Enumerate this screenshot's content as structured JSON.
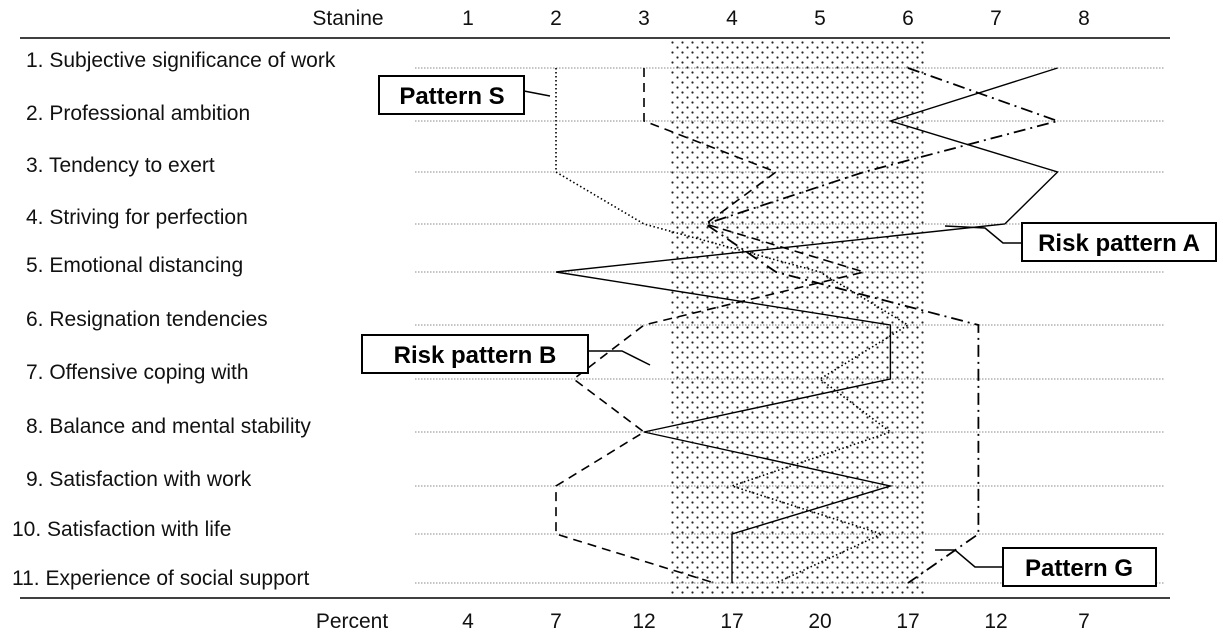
{
  "chart_data": {
    "type": "line",
    "top_axis_title": "Stanine",
    "top_ticks": [
      "1",
      "2",
      "3",
      "4",
      "5",
      "6",
      "7",
      "8"
    ],
    "bottom_axis_title": "Percent",
    "bottom_ticks": [
      "4",
      "7",
      "12",
      "17",
      "20",
      "17",
      "12",
      "7"
    ],
    "categories": [
      "1. Subjective significance of work",
      "2. Professional ambition",
      "3. Tendency to exert",
      "4. Striving for perfection",
      "5. Emotional distancing",
      "6. Resignation tendencies",
      "7. Offensive coping with",
      "8. Balance and mental stability",
      "9. Satisfaction with work",
      "10. Satisfaction with life",
      "11. Experience of social support"
    ],
    "normal_range": [
      3.3,
      6.2
    ],
    "series": [
      {
        "name": "Pattern S",
        "style": "dotted",
        "values": [
          2.0,
          2.0,
          2.0,
          3.0,
          5.0,
          6.0,
          5.0,
          5.8,
          4.0,
          5.7,
          4.5
        ]
      },
      {
        "name": "Risk pattern A",
        "style": "solid",
        "values": [
          7.7,
          5.8,
          7.7,
          7.1,
          2.0,
          5.8,
          5.8,
          3.0,
          5.8,
          4.0,
          4.0
        ]
      },
      {
        "name": "Risk pattern B",
        "style": "dashed",
        "values": [
          3.0,
          3.0,
          4.5,
          3.7,
          5.5,
          3.0,
          2.2,
          3.0,
          2.0,
          2.0,
          3.8
        ]
      },
      {
        "name": "Pattern G",
        "style": "dashdot",
        "values": [
          6.0,
          7.7,
          5.5,
          3.7,
          4.5,
          6.8,
          6.8,
          6.8,
          6.8,
          6.8,
          6.0
        ]
      }
    ],
    "annotations": [
      "Pattern S",
      "Risk pattern A",
      "Risk pattern B",
      "Pattern G"
    ],
    "grid": true
  }
}
